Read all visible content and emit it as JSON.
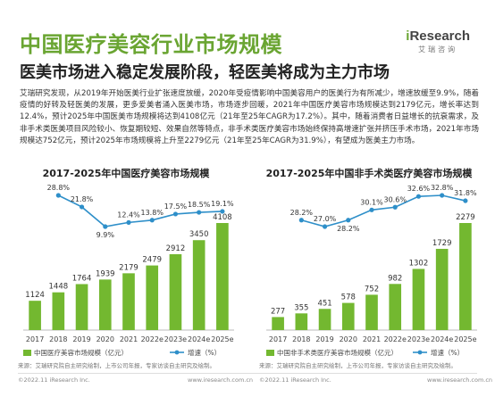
{
  "header": {
    "title": "中国医疗美容行业市场规模",
    "subtitle": "医美市场进入稳定发展阶段，轻医美将成为主力市场",
    "logo_brand_i": "i",
    "logo_brand_rest": "Research",
    "logo_sub": "艾瑞咨询"
  },
  "paragraph": "艾瑞研究发现，从2019年开始医美行业扩张速度放缓，2020年受疫情影响中国美容用户的医美行为有所减少，增速放缓至9.9%，随着疫情的好转及轻医美的发展，更多爱美者涌入医美市场，市场逐步回暖，2021年中国医疗美容市场规模达到2179亿元，增长率达到12.4%，预计2025年中国医美市场规模将达到4108亿元（21年至25年CAGR为17.2%）。其中，随着消费者日益增长的抗衰需求，及非手术类医美项目风险较小、恢复期较短、效果自然等特点，非手术类医疗美容市场始终保持高增速扩张并挤压手术市场，2021年市场规模达752亿元，预计2025年市场规模将上升至2279亿元（21年至25年CAGR为31.9%），有望成为医美主力市场。",
  "colors": {
    "bar": "#73b830",
    "line": "#2e8fc9",
    "accent": "#6aa532"
  },
  "chart_data": [
    {
      "type": "bar",
      "title": "2017-2025年中国医疗美容市场规模",
      "categories": [
        "2017",
        "2018",
        "2019",
        "2020",
        "2021",
        "2022e",
        "2023e",
        "2024e",
        "2025e"
      ],
      "series": [
        {
          "name": "中国医疗美容市场规模（亿元）",
          "type": "bar",
          "values": [
            1124,
            1448,
            1764,
            1939,
            2179,
            2479,
            2912,
            3450,
            4108
          ]
        },
        {
          "name": "增速（%）",
          "type": "line",
          "values": [
            null,
            28.8,
            21.8,
            9.9,
            12.4,
            13.8,
            17.5,
            18.5,
            19.1
          ],
          "labels": [
            "",
            "28.8%",
            "21.8%",
            "9.9%",
            "12.4%",
            "13.8%",
            "17.5%",
            "18.5%",
            "19.1%"
          ]
        }
      ],
      "note": "来源：艾瑞研究院自主研究绘制，上市公司年报，专家访谈自主研究及绘制。"
    },
    {
      "type": "bar",
      "title": "2017-2025年中国非手术类医疗美容市场规模",
      "categories": [
        "2017",
        "2018",
        "2019",
        "2020",
        "2021",
        "2022e",
        "2023e",
        "2024e",
        "2025e"
      ],
      "series": [
        {
          "name": "中国非手术类医疗美容市场规模（亿元）",
          "type": "bar",
          "values": [
            277,
            355,
            451,
            578,
            752,
            982,
            1302,
            1729,
            2279
          ]
        },
        {
          "name": "增速（%）",
          "type": "line",
          "values": [
            null,
            28.2,
            27.0,
            28.2,
            30.1,
            30.6,
            32.6,
            32.8,
            31.8
          ],
          "labels": [
            "",
            "28.2%",
            "27.0%",
            "28.2%",
            "30.1%",
            "30.6%",
            "32.6%",
            "32.8%",
            "31.8%"
          ]
        }
      ],
      "note": "来源：艾瑞研究院自主研究绘制，上市公司年报，专家访谈自主研究及绘制。"
    }
  ],
  "footer": {
    "left_copy": "©2022.11 iResearch Inc.",
    "left_url": "www.iresearch.com.cn",
    "right_copy": "©2022.11 iResearch Inc.",
    "right_url": "www.iresearch.com.cn"
  }
}
